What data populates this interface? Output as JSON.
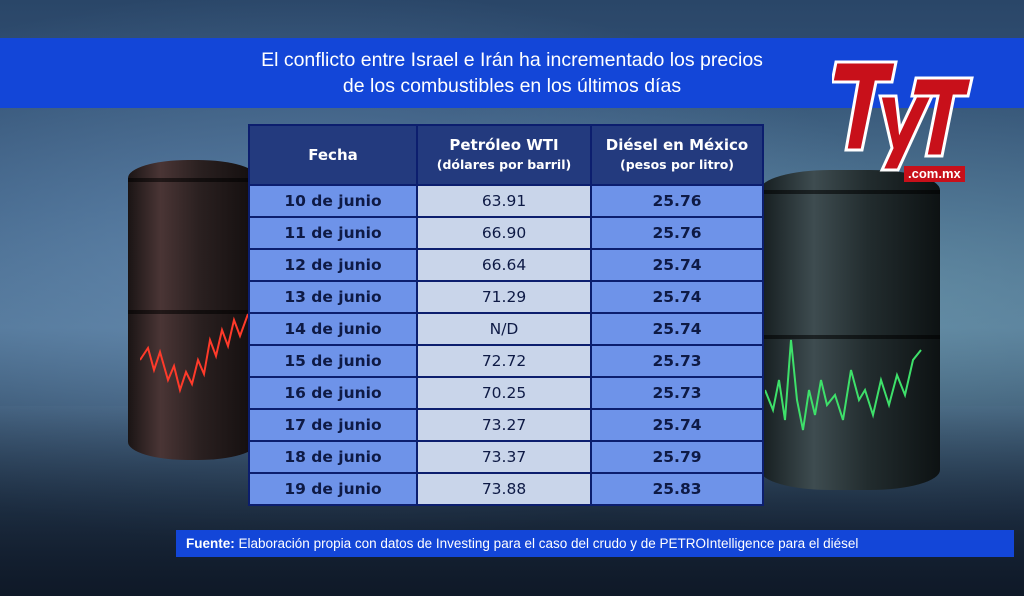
{
  "header": {
    "title_line1": "El conflicto entre Israel e Irán ha incrementado los precios",
    "title_line2": "de los combustibles en los últimos días"
  },
  "logo": {
    "brand": "TyT",
    "domain": ".com.mx",
    "color": "#c8101a"
  },
  "table": {
    "headers": {
      "date": "Fecha",
      "oil": "Petróleo WTI",
      "oil_unit": "(dólares por barril)",
      "diesel": "Diésel en México",
      "diesel_unit": "(pesos por litro)"
    },
    "rows": [
      {
        "date": "10 de junio",
        "oil": "63.91",
        "diesel": "25.76"
      },
      {
        "date": "11 de junio",
        "oil": "66.90",
        "diesel": "25.76"
      },
      {
        "date": "12 de junio",
        "oil": "66.64",
        "diesel": "25.74"
      },
      {
        "date": "13 de junio",
        "oil": "71.29",
        "diesel": "25.74"
      },
      {
        "date": "14 de junio",
        "oil": "N/D",
        "diesel": "25.74"
      },
      {
        "date": "15 de junio",
        "oil": "72.72",
        "diesel": "25.73"
      },
      {
        "date": "16 de junio",
        "oil": "70.25",
        "diesel": "25.73"
      },
      {
        "date": "17 de junio",
        "oil": "73.27",
        "diesel": "25.74"
      },
      {
        "date": "18 de junio",
        "oil": "73.37",
        "diesel": "25.79"
      },
      {
        "date": "19 de junio",
        "oil": "73.88",
        "diesel": "25.83"
      }
    ]
  },
  "footer": {
    "label": "Fuente:",
    "text": "Elaboración propia con datos de Investing para el caso del crudo y de PETROIntelligence para el diésel"
  },
  "colors": {
    "title_bar": "#1346d8",
    "header_cell": "#233a7e",
    "blue_cell": "#6e93e9",
    "grey_cell": "#c9d5ea"
  }
}
